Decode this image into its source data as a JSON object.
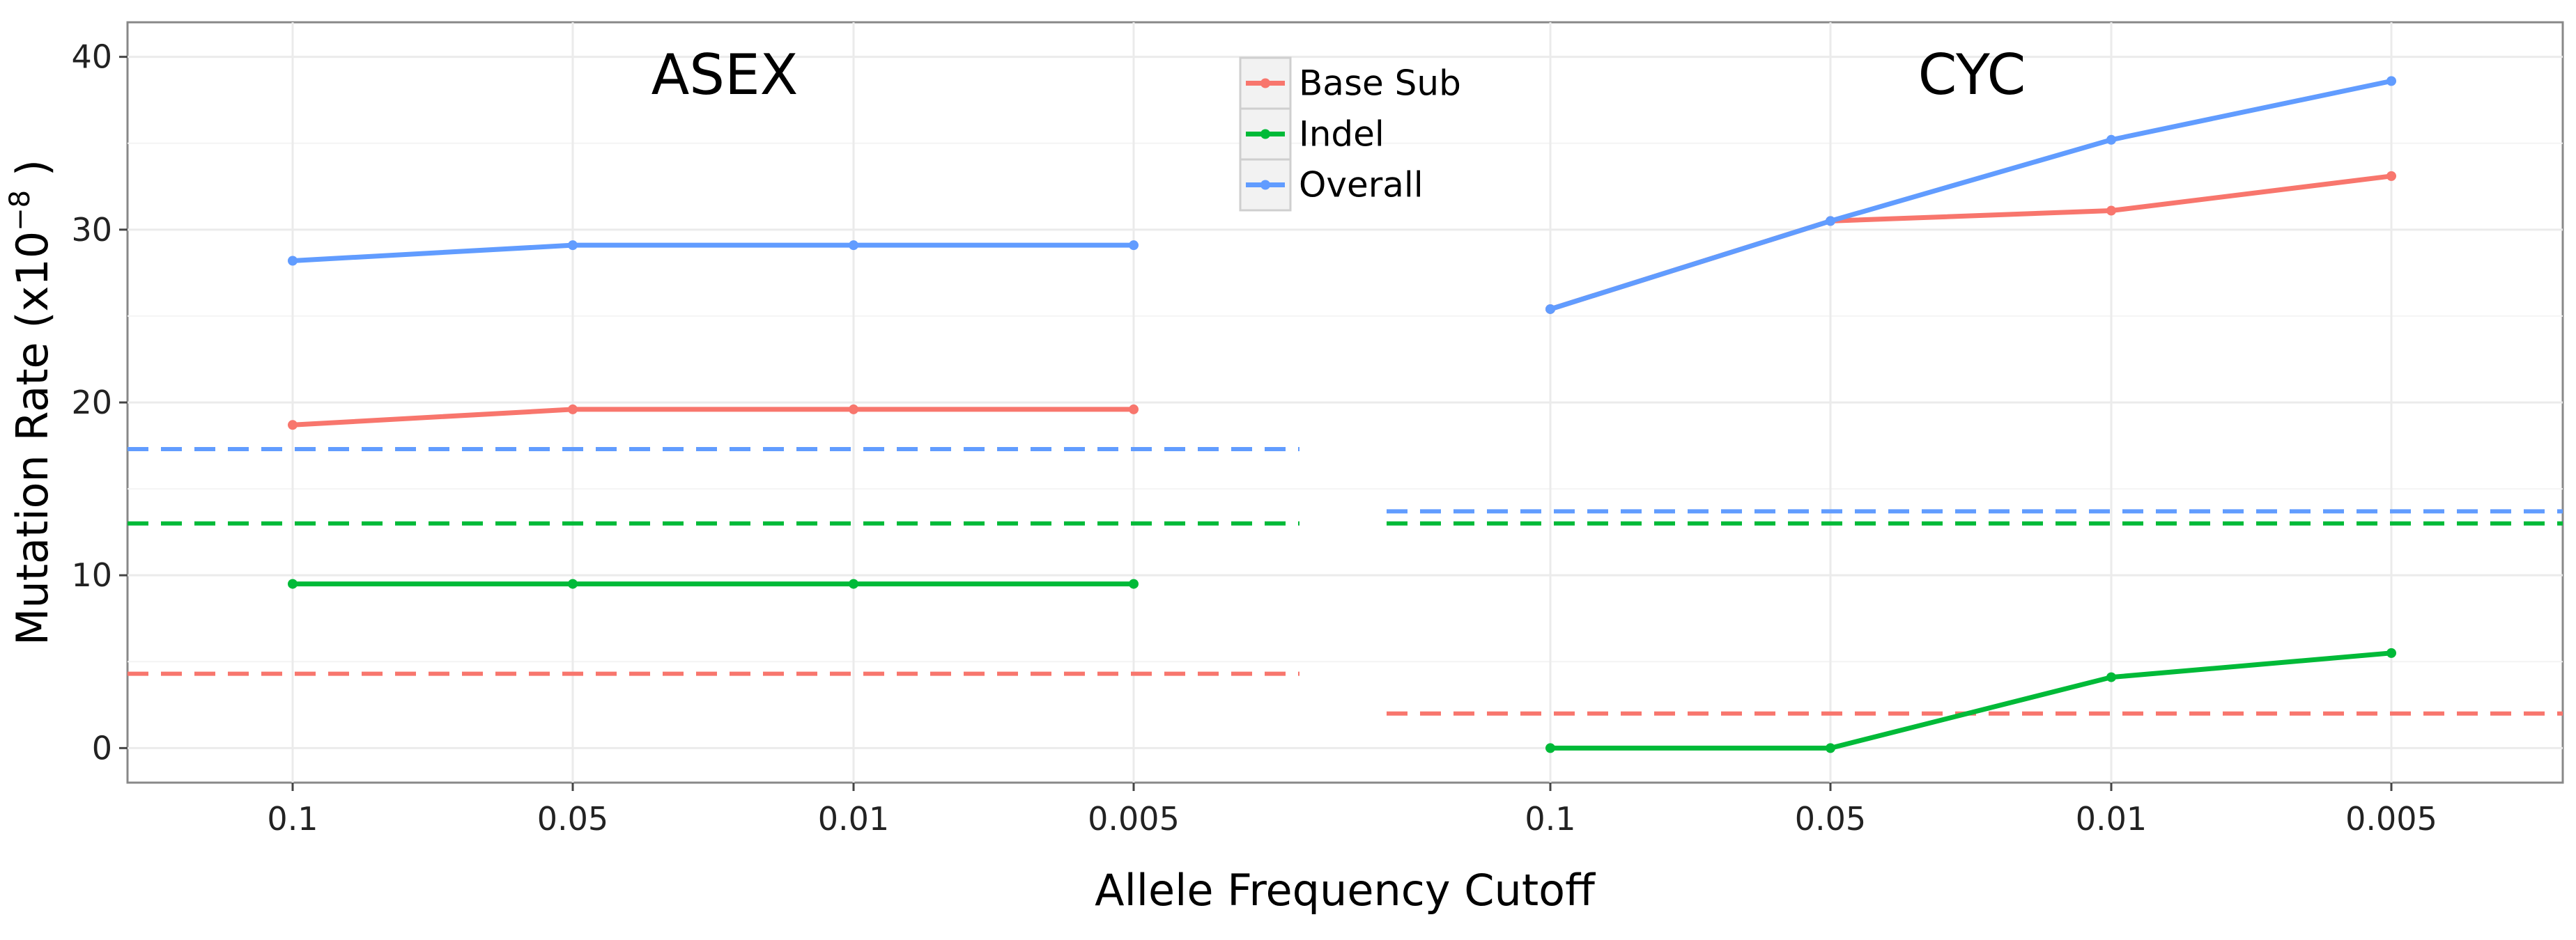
{
  "chart_data": {
    "type": "line",
    "xlabel": "Allele Frequency Cutoff",
    "ylabel": "Mutation Rate (x10",
    "ylabel_exponent": "−8",
    "ylabel_close": " )",
    "categories": [
      "0.1",
      "0.05",
      "0.01",
      "0.005"
    ],
    "ylim": [
      -2,
      42
    ],
    "yticks": [
      0,
      10,
      20,
      30,
      40
    ],
    "grid": true,
    "legend_position": "top-center",
    "legend": [
      {
        "name": "Base Sub",
        "color": "#F8766D"
      },
      {
        "name": "Indel",
        "color": "#00BA38"
      },
      {
        "name": "Overall",
        "color": "#619CFF"
      }
    ],
    "panels": [
      {
        "title": "ASEX",
        "series": [
          {
            "name": "Base Sub",
            "color": "#F8766D",
            "values": [
              18.7,
              19.6,
              19.6,
              19.6
            ]
          },
          {
            "name": "Indel",
            "color": "#00BA38",
            "values": [
              9.5,
              9.5,
              9.5,
              9.5
            ]
          },
          {
            "name": "Overall",
            "color": "#619CFF",
            "values": [
              28.2,
              29.1,
              29.1,
              29.1
            ]
          }
        ],
        "reference_lines": [
          {
            "series": "Base Sub",
            "color": "#F8766D",
            "value": 4.3
          },
          {
            "series": "Indel",
            "color": "#00BA38",
            "value": 13.0
          },
          {
            "series": "Overall",
            "color": "#619CFF",
            "value": 17.3
          }
        ]
      },
      {
        "title": "CYC",
        "series": [
          {
            "name": "Base Sub",
            "color": "#F8766D",
            "values": [
              25.4,
              30.5,
              31.1,
              33.1
            ]
          },
          {
            "name": "Indel",
            "color": "#00BA38",
            "values": [
              0.0,
              0.0,
              4.1,
              5.5
            ]
          },
          {
            "name": "Overall",
            "color": "#619CFF",
            "values": [
              25.4,
              30.5,
              35.2,
              38.6
            ]
          }
        ],
        "reference_lines": [
          {
            "series": "Base Sub",
            "color": "#F8766D",
            "value": 2.0
          },
          {
            "series": "Indel",
            "color": "#00BA38",
            "value": 13.0
          },
          {
            "series": "Overall",
            "color": "#619CFF",
            "value": 13.7
          }
        ]
      }
    ]
  }
}
